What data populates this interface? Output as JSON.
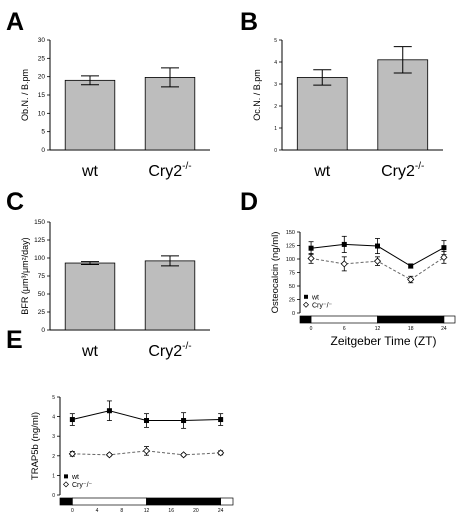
{
  "panels": {
    "A": "A",
    "B": "B",
    "C": "C",
    "D": "D",
    "E": "E"
  },
  "chart_data": [
    {
      "id": "A",
      "type": "bar",
      "categories": [
        "wt",
        "Cry2⁻/⁻"
      ],
      "values": [
        19.0,
        19.8
      ],
      "errors": [
        1.2,
        2.6
      ],
      "title": "",
      "xlabel": "",
      "ylabel": "Ob.N. / B.pm",
      "ylim": [
        0,
        30
      ],
      "yticks": [
        0,
        5,
        10,
        15,
        20,
        25,
        30
      ],
      "bar_color": "#bdbdbd"
    },
    {
      "id": "B",
      "type": "bar",
      "categories": [
        "wt",
        "Cry2⁻/⁻"
      ],
      "values": [
        3.3,
        4.1
      ],
      "errors": [
        0.35,
        0.6
      ],
      "title": "",
      "xlabel": "",
      "ylabel": "Oc.N. / B.pm",
      "ylim": [
        0,
        5
      ],
      "yticks": [
        0,
        1,
        2,
        3,
        4,
        5
      ],
      "bar_color": "#bdbdbd"
    },
    {
      "id": "C",
      "type": "bar",
      "categories": [
        "wt",
        "Cry2⁻/⁻"
      ],
      "values": [
        93,
        96
      ],
      "errors": [
        2,
        7
      ],
      "title": "",
      "xlabel": "",
      "ylabel": "BFR (μm³/μm²/day)",
      "ylim": [
        0,
        150
      ],
      "yticks": [
        0,
        25,
        50,
        75,
        100,
        125,
        150
      ],
      "bar_color": "#bdbdbd"
    },
    {
      "id": "D",
      "type": "line",
      "xlabel": "Zeitgeber Time (ZT)",
      "ylabel": "Osteocalcin (ng/ml)",
      "xlim": [
        -2,
        26
      ],
      "ylim": [
        0,
        150
      ],
      "xticks": [
        0,
        6,
        12,
        18,
        24
      ],
      "yticks": [
        0,
        25,
        50,
        75,
        100,
        125,
        150
      ],
      "series": [
        {
          "name": "wt",
          "marker": "filled-square",
          "dash": false,
          "x": [
            0,
            6,
            12,
            18,
            24
          ],
          "y": [
            120,
            127,
            124,
            87,
            121
          ],
          "err": [
            12,
            15,
            14,
            4,
            13
          ]
        },
        {
          "name": "Cry⁻/⁻",
          "marker": "open-diamond",
          "dash": true,
          "x": [
            0,
            6,
            12,
            18,
            24
          ],
          "y": [
            101,
            91,
            96,
            62,
            103
          ],
          "err": [
            9,
            13,
            8,
            6,
            11
          ]
        }
      ],
      "light_dark_bar": [
        {
          "from": -2,
          "to": 0,
          "dark": true
        },
        {
          "from": 0,
          "to": 12,
          "dark": false
        },
        {
          "from": 12,
          "to": 24,
          "dark": true
        },
        {
          "from": 24,
          "to": 26,
          "dark": false
        }
      ]
    },
    {
      "id": "E",
      "type": "line",
      "xlabel": "",
      "ylabel": "TRAP5b (ng/ml)",
      "xlim": [
        -2,
        26
      ],
      "ylim": [
        0,
        5
      ],
      "xticks": [
        0,
        4,
        8,
        12,
        16,
        20,
        24
      ],
      "yticks": [
        0,
        1,
        2,
        3,
        4,
        5
      ],
      "series": [
        {
          "name": "wt",
          "marker": "filled-square",
          "dash": false,
          "x": [
            0,
            6,
            12,
            18,
            24
          ],
          "y": [
            3.85,
            4.3,
            3.8,
            3.8,
            3.85
          ],
          "err": [
            0.3,
            0.5,
            0.35,
            0.4,
            0.3
          ]
        },
        {
          "name": "Cry⁻/⁻",
          "marker": "open-diamond",
          "dash": true,
          "x": [
            0,
            6,
            12,
            18,
            24
          ],
          "y": [
            2.1,
            2.05,
            2.25,
            2.05,
            2.15
          ],
          "err": [
            0.12,
            0.06,
            0.22,
            0.06,
            0.1
          ]
        }
      ],
      "light_dark_bar": [
        {
          "from": -2,
          "to": 0,
          "dark": true
        },
        {
          "from": 0,
          "to": 12,
          "dark": false
        },
        {
          "from": 12,
          "to": 24,
          "dark": true
        },
        {
          "from": 24,
          "to": 26,
          "dark": false
        }
      ]
    }
  ]
}
